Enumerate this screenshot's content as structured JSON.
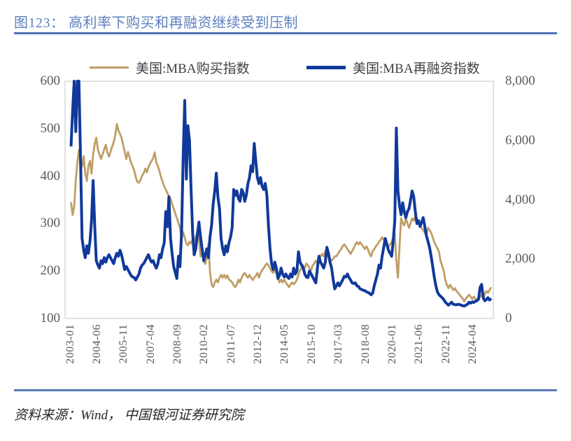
{
  "header": {
    "title": "图123： 高利率下购买和再融资继续受到压制"
  },
  "source": {
    "text": "资料来源：Wind， 中国银河证券研究院"
  },
  "colors": {
    "purchase": "#bf9e66",
    "refinance": "#10399b",
    "title_blue": "#5d7fbf",
    "rule_blue": "#4c72b4",
    "axis_text": "#595959",
    "plot_border": "#d9d9d9"
  },
  "chart_data": {
    "type": "line",
    "title": "图123： 高利率下购买和再融资继续受到压制",
    "legend_position": "top",
    "grid": false,
    "x_start": "2003-01",
    "x_interval": "monthly",
    "x_tick_labels": [
      "2003-01",
      "2004-06",
      "2005-11",
      "2007-04",
      "2008-09",
      "2010-02",
      "2011-07",
      "2012-12",
      "2014-05",
      "2015-10",
      "2017-03",
      "2018-08",
      "2020-01",
      "2021-06",
      "2022-11",
      "2024-04"
    ],
    "x_tick_step_months": 17,
    "ylim_left": [
      100,
      600
    ],
    "ylim_right": [
      0,
      8000
    ],
    "left_tick_labels": [
      "600",
      "500",
      "400",
      "300",
      "200",
      "100"
    ],
    "right_tick_labels": [
      "8,000",
      "6,000",
      "4,000",
      "2,000",
      "0"
    ],
    "series": [
      {
        "name": "美国:MBA购买指数",
        "axis": "left",
        "color": "#bf9e66",
        "values": [
          345,
          318,
          336,
          392,
          428,
          455,
          436,
          420,
          442,
          406,
          390,
          421,
          432,
          405,
          446,
          468,
          481,
          456,
          446,
          436,
          446,
          456,
          466,
          450,
          441,
          451,
          462,
          471,
          486,
          510,
          496,
          489,
          481,
          466,
          451,
          436,
          451,
          441,
          428,
          421,
          412,
          398,
          388,
          386,
          392,
          401,
          406,
          416,
          408,
          419,
          426,
          432,
          438,
          450,
          428,
          422,
          410,
          398,
          388,
          378,
          372,
          364,
          358,
          352,
          341,
          332,
          321,
          312,
          301,
          291,
          268,
          282,
          271,
          258,
          254,
          262,
          258,
          268,
          262,
          272,
          281,
          268,
          231,
          242,
          222,
          215,
          228,
          258,
          198,
          172,
          166,
          176,
          182,
          176,
          186,
          192,
          186,
          192,
          185,
          191,
          182,
          180,
          176,
          170,
          166,
          172,
          182,
          176,
          186,
          192,
          196,
          190,
          186,
          192,
          186,
          181,
          186,
          190,
          196,
          186,
          196,
          202,
          206,
          212,
          216,
          212,
          206,
          200,
          196,
          202,
          196,
          186,
          176,
          182,
          176,
          182,
          176,
          171,
          166,
          172,
          176,
          172,
          176,
          182,
          192,
          202,
          206,
          212,
          206,
          216,
          212,
          206,
          202,
          212,
          216,
          222,
          216,
          226,
          231,
          236,
          231,
          242,
          236,
          231,
          226,
          222,
          226,
          231,
          231,
          236,
          242,
          246,
          252,
          256,
          252,
          246,
          242,
          236,
          242,
          248,
          256,
          261,
          256,
          261,
          256,
          252,
          246,
          252,
          246,
          236,
          231,
          242,
          246,
          252,
          256,
          261,
          266,
          271,
          266,
          261,
          256,
          252,
          256,
          261,
          271,
          278,
          222,
          186,
          252,
          311,
          301,
          296,
          311,
          301,
          291,
          301,
          311,
          306,
          316,
          308,
          301,
          296,
          291,
          286,
          281,
          276,
          291,
          286,
          281,
          271,
          261,
          254,
          248,
          240,
          221,
          211,
          200,
          181,
          171,
          164,
          171,
          166,
          160,
          164,
          158,
          154,
          150,
          146,
          142,
          136,
          142,
          146,
          150,
          146,
          141,
          146,
          142,
          136,
          141,
          146,
          150,
          141,
          152,
          158,
          154,
          160,
          166
        ]
      },
      {
        "name": "美国:MBA再融资指数",
        "axis": "right",
        "color": "#10399b",
        "values": [
          5800,
          7000,
          8800,
          6300,
          9200,
          9000,
          5500,
          2700,
          2300,
          2050,
          2450,
          2200,
          2600,
          3300,
          4650,
          3100,
          1950,
          1800,
          1700,
          1950,
          1850,
          2050,
          1900,
          2050,
          2150,
          2050,
          1950,
          1850,
          2050,
          2200,
          2100,
          2300,
          2150,
          1900,
          1650,
          1750,
          1650,
          1550,
          1450,
          1400,
          1380,
          1300,
          1400,
          1500,
          1700,
          1800,
          1850,
          1950,
          2050,
          2150,
          2000,
          1900,
          1950,
          1800,
          1700,
          1850,
          2150,
          2050,
          2350,
          2550,
          3600,
          3100,
          4100,
          2700,
          2200,
          1750,
          1550,
          1350,
          2100,
          1750,
          2900,
          5400,
          7350,
          4700,
          6500,
          6000,
          4400,
          2900,
          2150,
          2350,
          2850,
          3250,
          2750,
          2350,
          1950,
          2150,
          2350,
          2050,
          2750,
          3150,
          3850,
          4300,
          4900,
          4100,
          3700,
          2700,
          2350,
          2150,
          2450,
          2250,
          2550,
          2750,
          3050,
          4350,
          4150,
          4300,
          4050,
          3950,
          4350,
          4250,
          3950,
          4150,
          4550,
          4750,
          5150,
          4950,
          5900,
          5300,
          4750,
          4550,
          4750,
          4450,
          4350,
          4550,
          4150,
          3150,
          2350,
          1850,
          1650,
          1900,
          1700,
          1350,
          1450,
          1700,
          1500,
          1400,
          1500,
          1400,
          1350,
          1500,
          1400,
          1700,
          1500,
          1600,
          2250,
          1900,
          1800,
          1700,
          1500,
          1400,
          1380,
          1600,
          1500,
          1400,
          1300,
          1200,
          1700,
          2100,
          1900,
          1800,
          1700,
          1900,
          2400,
          2200,
          1900,
          1700,
          1300,
          1000,
          1100,
          1200,
          1100,
          1200,
          1300,
          1420,
          1400,
          1500,
          1380,
          1300,
          1200,
          1180,
          1200,
          1100,
          1080,
          1000,
          980,
          950,
          940,
          900,
          880,
          850,
          800,
          860,
          1100,
          1300,
          1500,
          1800,
          1700,
          2100,
          2400,
          2700,
          2500,
          2300,
          2200,
          2100,
          2600,
          3300,
          6420,
          4300,
          3800,
          3500,
          3900,
          3600,
          3400,
          3600,
          3700,
          4000,
          4300,
          4100,
          3600,
          3200,
          3300,
          3100,
          3250,
          3400,
          3100,
          2800,
          2600,
          2400,
          2100,
          1750,
          1400,
          1100,
          900,
          800,
          750,
          700,
          640,
          550,
          500,
          450,
          500,
          550,
          480,
          470,
          460,
          480,
          470,
          450,
          430,
          420,
          450,
          480,
          550,
          520,
          560,
          540,
          580,
          600,
          650,
          1050,
          1150,
          700,
          600,
          640,
          700,
          620,
          680
        ]
      }
    ]
  }
}
